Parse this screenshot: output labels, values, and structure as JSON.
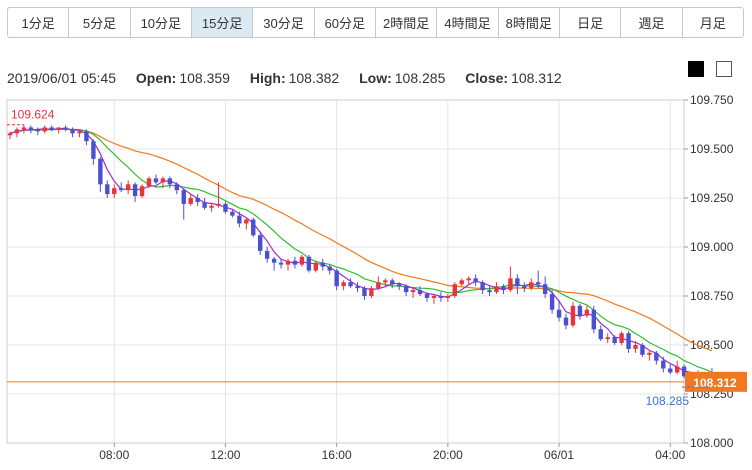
{
  "timeframes": [
    {
      "label": "1分足",
      "active": false
    },
    {
      "label": "5分足",
      "active": false
    },
    {
      "label": "10分足",
      "active": false
    },
    {
      "label": "15分足",
      "active": true
    },
    {
      "label": "30分足",
      "active": false
    },
    {
      "label": "60分足",
      "active": false
    },
    {
      "label": "2時間足",
      "active": false
    },
    {
      "label": "4時間足",
      "active": false
    },
    {
      "label": "8時間足",
      "active": false
    },
    {
      "label": "日足",
      "active": false
    },
    {
      "label": "週足",
      "active": false
    },
    {
      "label": "月足",
      "active": false
    }
  ],
  "ohlc": {
    "datetime": "2019/06/01 05:45",
    "open_label": "Open:",
    "open": "108.359",
    "high_label": "High:",
    "high": "108.382",
    "low_label": "Low:",
    "low": "108.285",
    "close_label": "Close:",
    "close": "108.312"
  },
  "theme_swatches": [
    "black",
    "white"
  ],
  "chart_data": {
    "type": "candlestick",
    "ylim": [
      108.0,
      109.75
    ],
    "y_ticks": [
      "109.750",
      "109.500",
      "109.250",
      "109.000",
      "108.750",
      "108.500",
      "108.250",
      "108.000"
    ],
    "x_ticks": [
      "08:00",
      "12:00",
      "16:00",
      "20:00",
      "06/01",
      "04:00"
    ],
    "x_tick_bar_index": [
      15,
      31,
      47,
      63,
      79,
      95
    ],
    "bar_interval": "15min",
    "max_label": "109.624",
    "min_label": "108.285",
    "current_price": "108.312",
    "colors": {
      "up": "#e8343c",
      "down": "#4b4fd1",
      "ma_short": "#9b30d0",
      "ma_mid": "#2fbf2f",
      "ma_long": "#f07820",
      "current_line": "#f07820",
      "max_label": "#e8343c",
      "min_label": "#3f74c9"
    },
    "candles": [
      [
        109.57,
        109.59,
        109.55,
        109.58
      ],
      [
        109.58,
        109.61,
        109.56,
        109.6
      ],
      [
        109.6,
        109.624,
        109.58,
        109.61
      ],
      [
        109.61,
        109.62,
        109.58,
        109.6
      ],
      [
        109.6,
        109.61,
        109.57,
        109.59
      ],
      [
        109.59,
        109.62,
        109.58,
        109.61
      ],
      [
        109.61,
        109.62,
        109.59,
        109.6
      ],
      [
        109.6,
        109.61,
        109.58,
        109.61
      ],
      [
        109.61,
        109.62,
        109.59,
        109.6
      ],
      [
        109.6,
        109.61,
        109.56,
        109.58
      ],
      [
        109.58,
        109.6,
        109.56,
        109.59
      ],
      [
        109.59,
        109.6,
        109.52,
        109.54
      ],
      [
        109.54,
        109.55,
        109.42,
        109.45
      ],
      [
        109.45,
        109.46,
        109.28,
        109.32
      ],
      [
        109.32,
        109.34,
        109.25,
        109.27
      ],
      [
        109.27,
        109.32,
        109.25,
        109.3
      ],
      [
        109.3,
        109.33,
        109.28,
        109.29
      ],
      [
        109.29,
        109.34,
        109.27,
        109.32
      ],
      [
        109.32,
        109.33,
        109.23,
        109.26
      ],
      [
        109.26,
        109.32,
        109.25,
        109.31
      ],
      [
        109.31,
        109.36,
        109.3,
        109.35
      ],
      [
        109.35,
        109.37,
        109.32,
        109.33
      ],
      [
        109.33,
        109.36,
        109.3,
        109.35
      ],
      [
        109.35,
        109.36,
        109.3,
        109.32
      ],
      [
        109.32,
        109.33,
        109.27,
        109.29
      ],
      [
        109.29,
        109.3,
        109.14,
        109.22
      ],
      [
        109.22,
        109.27,
        109.21,
        109.25
      ],
      [
        109.25,
        109.27,
        109.21,
        109.23
      ],
      [
        109.23,
        109.25,
        109.19,
        109.2
      ],
      [
        109.2,
        109.22,
        109.18,
        109.21
      ],
      [
        109.21,
        109.33,
        109.2,
        109.22
      ],
      [
        109.22,
        109.23,
        109.17,
        109.18
      ],
      [
        109.18,
        109.19,
        109.15,
        109.16
      ],
      [
        109.16,
        109.18,
        109.1,
        109.12
      ],
      [
        109.12,
        109.15,
        109.09,
        109.14
      ],
      [
        109.14,
        109.15,
        109.05,
        109.06
      ],
      [
        109.06,
        109.08,
        108.96,
        108.98
      ],
      [
        108.98,
        109.0,
        108.92,
        108.94
      ],
      [
        108.94,
        108.95,
        108.88,
        108.92
      ],
      [
        108.92,
        108.94,
        108.89,
        108.91
      ],
      [
        108.91,
        108.94,
        108.88,
        108.93
      ],
      [
        108.93,
        108.95,
        108.89,
        108.91
      ],
      [
        108.91,
        108.96,
        108.9,
        108.95
      ],
      [
        108.95,
        108.96,
        108.87,
        108.88
      ],
      [
        108.88,
        108.93,
        108.87,
        108.92
      ],
      [
        108.92,
        108.94,
        108.88,
        108.9
      ],
      [
        108.9,
        108.91,
        108.86,
        108.88
      ],
      [
        108.88,
        108.89,
        108.78,
        108.8
      ],
      [
        108.8,
        108.83,
        108.78,
        108.82
      ],
      [
        108.82,
        108.84,
        108.79,
        108.8
      ],
      [
        108.8,
        108.82,
        108.77,
        108.79
      ],
      [
        108.79,
        108.8,
        108.73,
        108.75
      ],
      [
        108.75,
        108.8,
        108.74,
        108.79
      ],
      [
        108.79,
        108.85,
        108.78,
        108.82
      ],
      [
        108.82,
        108.84,
        108.8,
        108.83
      ],
      [
        108.83,
        108.84,
        108.79,
        108.81
      ],
      [
        108.81,
        108.82,
        108.78,
        108.8
      ],
      [
        108.8,
        108.81,
        108.75,
        108.77
      ],
      [
        108.77,
        108.79,
        108.74,
        108.78
      ],
      [
        108.78,
        108.8,
        108.75,
        108.76
      ],
      [
        108.76,
        108.77,
        108.72,
        108.74
      ],
      [
        108.74,
        108.76,
        108.71,
        108.75
      ],
      [
        108.75,
        108.77,
        108.72,
        108.74
      ],
      [
        108.74,
        108.76,
        108.72,
        108.75
      ],
      [
        108.75,
        108.82,
        108.74,
        108.81
      ],
      [
        108.81,
        108.84,
        108.8,
        108.83
      ],
      [
        108.83,
        108.85,
        108.81,
        108.84
      ],
      [
        108.84,
        108.86,
        108.8,
        108.82
      ],
      [
        108.82,
        108.83,
        108.76,
        108.78
      ],
      [
        108.78,
        108.8,
        108.75,
        108.77
      ],
      [
        108.77,
        108.82,
        108.76,
        108.8
      ],
      [
        108.8,
        108.81,
        108.76,
        108.78
      ],
      [
        108.78,
        108.9,
        108.77,
        108.84
      ],
      [
        108.84,
        108.86,
        108.76,
        108.8
      ],
      [
        108.8,
        108.82,
        108.77,
        108.79
      ],
      [
        108.79,
        108.84,
        108.78,
        108.82
      ],
      [
        108.82,
        108.88,
        108.79,
        108.81
      ],
      [
        108.81,
        108.85,
        108.74,
        108.76
      ],
      [
        108.76,
        108.78,
        108.66,
        108.68
      ],
      [
        108.68,
        108.73,
        108.62,
        108.64
      ],
      [
        108.64,
        108.66,
        108.58,
        108.6
      ],
      [
        108.6,
        108.72,
        108.59,
        108.7
      ],
      [
        108.7,
        108.71,
        108.63,
        108.65
      ],
      [
        108.65,
        108.7,
        108.64,
        108.68
      ],
      [
        108.68,
        108.7,
        108.56,
        108.58
      ],
      [
        108.58,
        108.6,
        108.52,
        108.53
      ],
      [
        108.53,
        108.56,
        108.51,
        108.54
      ],
      [
        108.54,
        108.55,
        108.5,
        108.51
      ],
      [
        108.51,
        108.57,
        108.5,
        108.56
      ],
      [
        108.56,
        108.57,
        108.46,
        108.48
      ],
      [
        108.48,
        108.52,
        108.46,
        108.5
      ],
      [
        108.5,
        108.51,
        108.44,
        108.45
      ],
      [
        108.45,
        108.47,
        108.42,
        108.46
      ],
      [
        108.46,
        108.47,
        108.4,
        108.42
      ],
      [
        108.42,
        108.44,
        108.36,
        108.38
      ],
      [
        108.38,
        108.4,
        108.35,
        108.36
      ],
      [
        108.36,
        108.42,
        108.35,
        108.39
      ],
      [
        108.39,
        108.4,
        108.33,
        108.34
      ],
      [
        108.34,
        108.36,
        108.33,
        108.35
      ],
      [
        108.35,
        108.37,
        108.33,
        108.34
      ],
      [
        108.34,
        108.36,
        108.32,
        108.35
      ],
      [
        108.359,
        108.382,
        108.285,
        108.312
      ]
    ]
  }
}
